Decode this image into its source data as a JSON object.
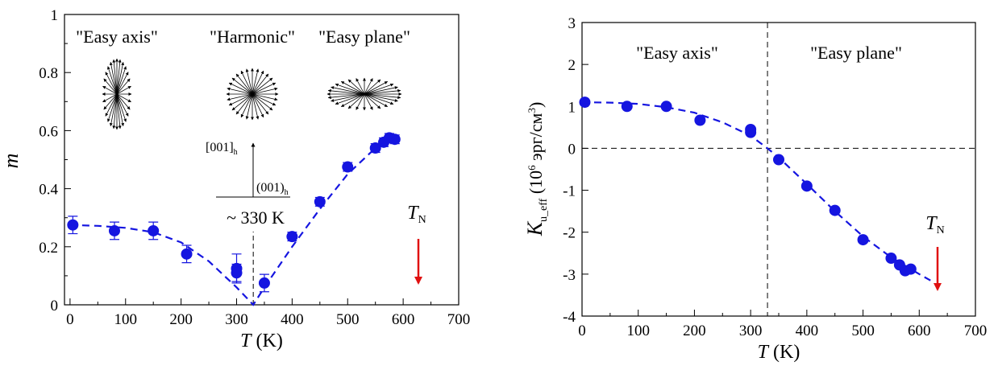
{
  "chart_data": [
    {
      "type": "scatter",
      "xlabel": {
        "var": "T",
        "unit": "(K)"
      },
      "ylabel": "m",
      "xlim": [
        -10,
        700
      ],
      "ylim": [
        0,
        1
      ],
      "xticks": [
        0,
        100,
        200,
        300,
        400,
        500,
        600,
        700
      ],
      "xminor": [
        50,
        150,
        250,
        350,
        450,
        550,
        650
      ],
      "yticks": [
        0,
        0.2,
        0.4,
        0.6,
        0.8,
        1
      ],
      "yminor": [
        0.1,
        0.3,
        0.5,
        0.7,
        0.9
      ],
      "series": [
        {
          "color": "#1515e0",
          "marker": "circle",
          "x": [
            5,
            80,
            150,
            210,
            300,
            300,
            350,
            400,
            450,
            500,
            550,
            565,
            575,
            585
          ],
          "values": [
            0.275,
            0.255,
            0.255,
            0.175,
            0.125,
            0.11,
            0.075,
            0.235,
            0.355,
            0.475,
            0.54,
            0.56,
            0.575,
            0.57
          ],
          "errors": [
            0.03,
            0.03,
            0.03,
            0.03,
            0.05,
            0.03,
            0.03,
            0.015,
            0.015,
            0.015,
            0.015,
            0.015,
            0.015,
            0.015
          ]
        },
        {
          "color": "#1515e0",
          "style": "dashed",
          "x": [
            0,
            50,
            100,
            150,
            200,
            250,
            300,
            330,
            350,
            400,
            450,
            500,
            550,
            590
          ],
          "values": [
            0.275,
            0.272,
            0.265,
            0.25,
            0.215,
            0.15,
            0.06,
            0,
            0.06,
            0.2,
            0.33,
            0.45,
            0.54,
            0.58
          ]
        }
      ],
      "annotations": [
        "\"Easy axis\"",
        "\"Harmonic\"",
        "\"Easy plane\"",
        "~ 330 K"
      ],
      "direction": {
        "base": "[001]",
        "sub": "h"
      },
      "plane": {
        "base": "(001)",
        "sub": "h"
      },
      "tn": {
        "base": "T",
        "sub": "N"
      },
      "arrow_color": "#e01010"
    },
    {
      "type": "scatter",
      "xlabel": {
        "var": "T",
        "unit": "(K)"
      },
      "ylabel": {
        "var": "K",
        "sub": "u_eff",
        "a": " (10",
        "sup1": "6",
        "b": " эрг/см",
        "sup2": "3",
        "c": ")"
      },
      "xlim": [
        0,
        700
      ],
      "ylim": [
        -4,
        3
      ],
      "xticks": [
        0,
        100,
        200,
        300,
        400,
        500,
        600,
        700
      ],
      "xminor": [
        50,
        150,
        250,
        350,
        450,
        550,
        650
      ],
      "yticks": [
        -4,
        -3,
        -2,
        -1,
        0,
        1,
        2,
        3
      ],
      "series": [
        {
          "color": "#1515e0",
          "marker": "circle",
          "x": [
            5,
            80,
            150,
            210,
            300,
            300,
            350,
            400,
            450,
            500,
            550,
            565,
            575,
            585
          ],
          "values": [
            1.1,
            1.0,
            1.0,
            0.67,
            0.45,
            0.38,
            -0.27,
            -0.9,
            -1.48,
            -2.18,
            -2.62,
            -2.78,
            -2.92,
            -2.88
          ]
        },
        {
          "color": "#1515e0",
          "style": "dashed",
          "x": [
            0,
            50,
            100,
            150,
            200,
            250,
            300,
            330,
            350,
            400,
            450,
            500,
            550,
            600,
            620
          ],
          "values": [
            1.1,
            1.09,
            1.06,
            0.98,
            0.85,
            0.62,
            0.3,
            0,
            -0.22,
            -0.85,
            -1.5,
            -2.1,
            -2.6,
            -3.0,
            -3.15
          ]
        }
      ],
      "annotations": [
        "\"Easy axis\"",
        "\"Easy plane\""
      ],
      "tn": {
        "base": "T",
        "sub": "N"
      },
      "arrow_color": "#e01010"
    }
  ]
}
